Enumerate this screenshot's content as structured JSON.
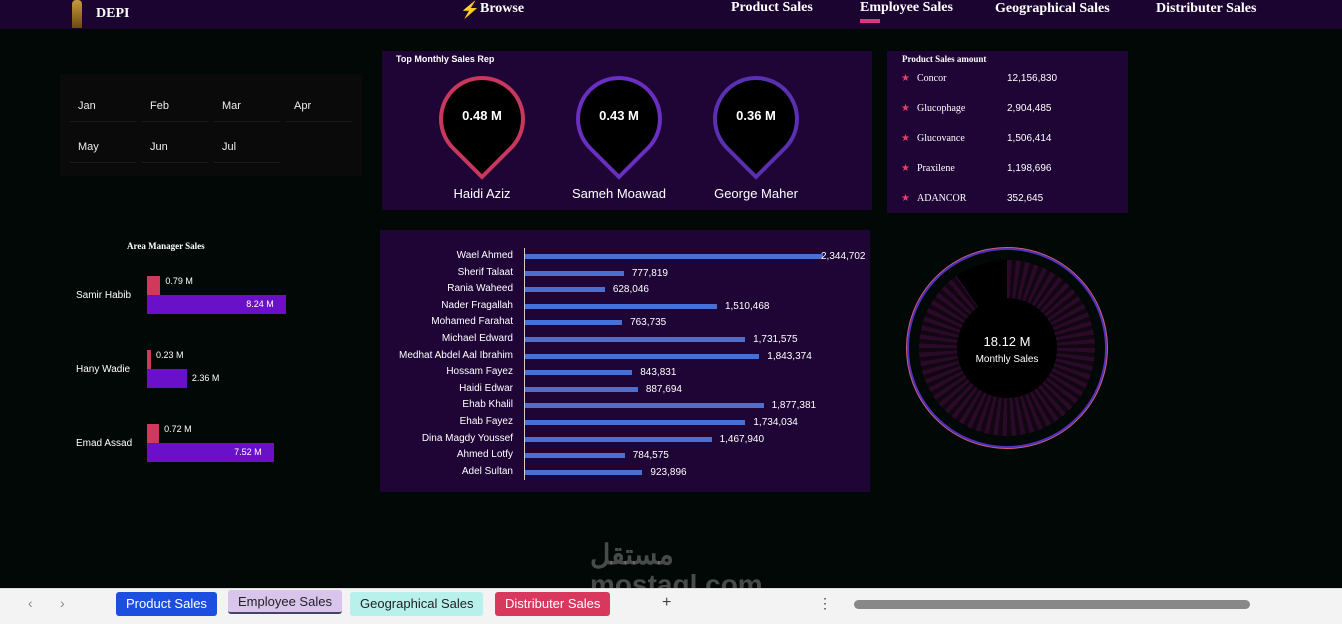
{
  "header": {
    "logo": "DEPI",
    "browse": "Browse",
    "nav": [
      "Product Sales",
      "Employee Sales",
      "Geographical Sales",
      "Distributer Sales"
    ],
    "active": "Employee Sales"
  },
  "months": [
    "Jan",
    "Feb",
    "Mar",
    "Apr",
    "May",
    "Jun",
    "Jul"
  ],
  "top_reps": {
    "title": "Top Monthly Sales Rep",
    "reps": [
      {
        "value": "0.48 M",
        "name": "Haidi Aziz",
        "color": "#c8385e"
      },
      {
        "value": "0.43 M",
        "name": "Sameh Moawad",
        "color": "#6a2fc0"
      },
      {
        "value": "0.36 M",
        "name": "George  Maher",
        "color": "#5a2fb0"
      }
    ]
  },
  "product_sales": {
    "title": "Product Sales amount",
    "items": [
      {
        "name": "Concor",
        "value": "12,156,830"
      },
      {
        "name": "Glucophage",
        "value": "2,904,485"
      },
      {
        "name": "Glucovance",
        "value": "1,506,414"
      },
      {
        "name": "Praxilene",
        "value": "1,198,696"
      },
      {
        "name": "ADANCOR",
        "value": "352,645"
      }
    ]
  },
  "area_managers": {
    "title": "Area Manager Sales",
    "items": [
      {
        "name": "Samir Habib",
        "small": 0.79,
        "small_label": "0.79 M",
        "big": 8.24,
        "big_label": "8.24 M"
      },
      {
        "name": "Hany Wadie",
        "small": 0.23,
        "small_label": "0.23 M",
        "big": 2.36,
        "big_label": "2.36 M"
      },
      {
        "name": "Emad Assad",
        "small": 0.72,
        "small_label": "0.72 M",
        "big": 7.52,
        "big_label": "7.52 M"
      }
    ]
  },
  "chart_data": {
    "type": "bar",
    "orientation": "horizontal",
    "categories": [
      "Wael Ahmed",
      "Sherif Talaat",
      "Rania Waheed",
      "Nader Fragallah",
      "Mohamed Farahat",
      "Michael Edward",
      "Medhat Abdel Aal Ibrahim",
      "Hossam Fayez",
      "Haidi Edwar",
      "Ehab Khalil",
      "Ehab Fayez",
      "Dina Magdy Youssef",
      "Ahmed Lotfy",
      "Adel Sultan"
    ],
    "values": [
      2344702,
      777819,
      628046,
      1510468,
      763735,
      1731575,
      1843374,
      843831,
      887694,
      1877381,
      1734034,
      1467940,
      784575,
      923896
    ],
    "labels": [
      "2,344,702",
      "777,819",
      "628,046",
      "1,510,468",
      "763,735",
      "1,731,575",
      "1,843,374",
      "843,831",
      "887,694",
      "1,877,381",
      "1,734,034",
      "1,467,940",
      "784,575",
      "923,896"
    ],
    "color": "#4a6fd0"
  },
  "monthly": {
    "value": "18.12 M",
    "label": "Monthly Sales"
  },
  "sheet_tabs": [
    {
      "label": "Product Sales",
      "bg": "#1c4fe0",
      "fg": "#fff"
    },
    {
      "label": "Employee Sales",
      "bg": "#d9c4ec",
      "fg": "#222"
    },
    {
      "label": "Geographical Sales",
      "bg": "#b8f0ec",
      "fg": "#222"
    },
    {
      "label": "Distributer Sales",
      "bg": "#d8385e",
      "fg": "#fff"
    }
  ],
  "watermark": "مستقل mostaql.com"
}
